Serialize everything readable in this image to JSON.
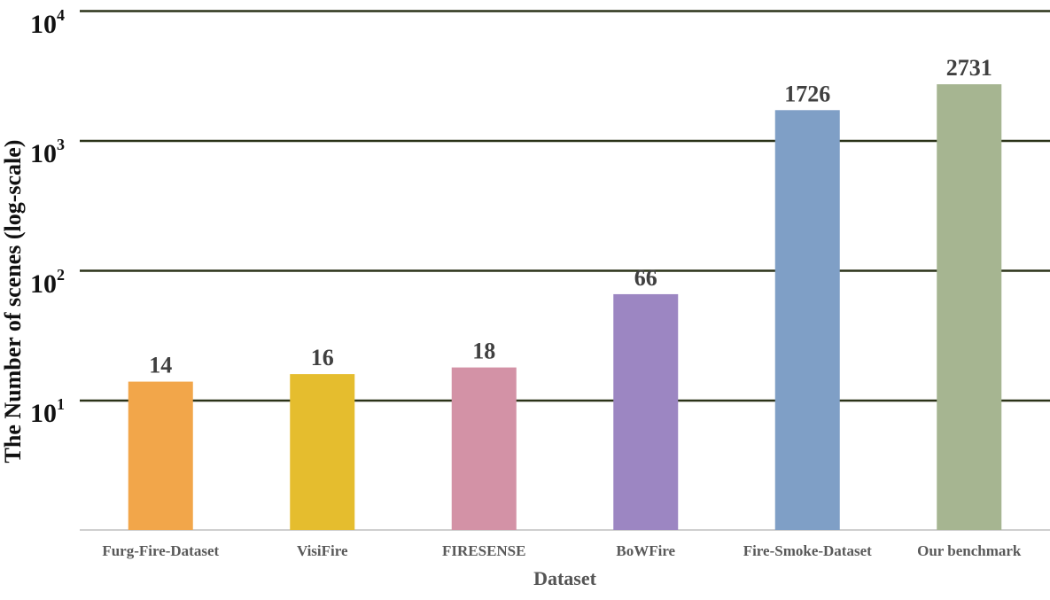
{
  "chart_data": {
    "type": "bar",
    "categories": [
      "Furg-Fire-Dataset",
      "VisiFire",
      "FIRESENSE",
      "BoWFire",
      "Fire-Smoke-Dataset",
      "Our benchmark"
    ],
    "values": [
      14,
      16,
      18,
      66,
      1726,
      2731
    ],
    "data_labels": [
      "14",
      "16",
      "18",
      "66",
      "1726",
      "2731"
    ],
    "colors": [
      "#F2A64A",
      "#E5BD2E",
      "#D392A6",
      "#9C86C2",
      "#7F9FC6",
      "#A6B591"
    ],
    "xlabel": "Dataset",
    "ylabel": "The Number of scenes (log-scale)",
    "yscale": "log",
    "ylim": [
      1,
      10000
    ],
    "ytick_labels": [
      {
        "base": "10",
        "exp": "1",
        "value": 10
      },
      {
        "base": "10",
        "exp": "2",
        "value": 100
      },
      {
        "base": "10",
        "exp": "3",
        "value": 1000
      },
      {
        "base": "10",
        "exp": "4",
        "value": 10000
      }
    ],
    "grid": true,
    "legend": "none"
  }
}
